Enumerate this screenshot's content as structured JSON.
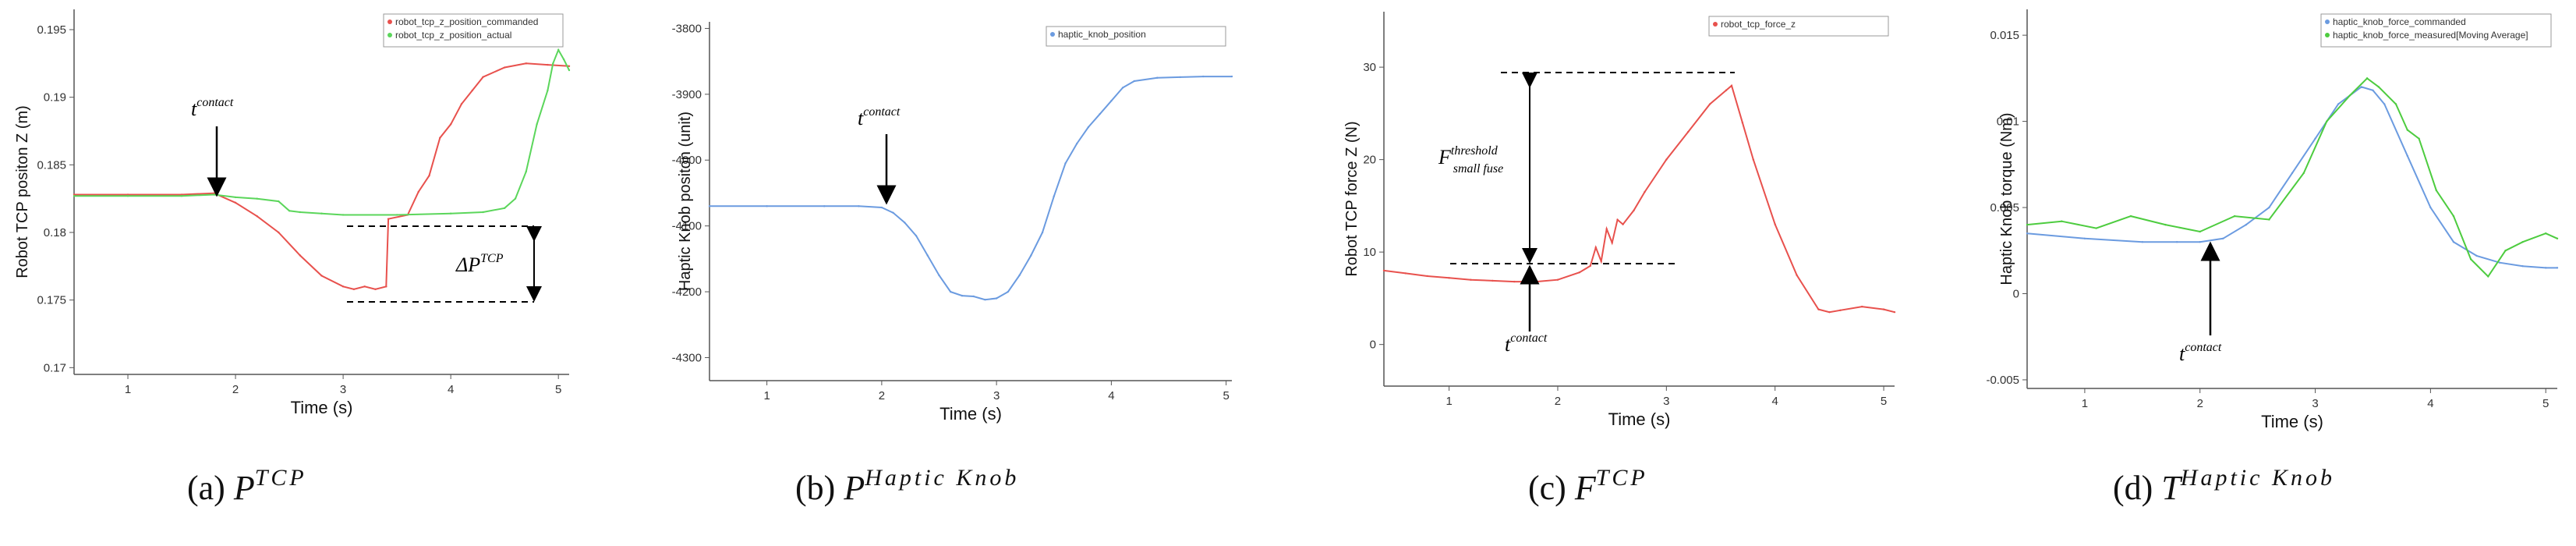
{
  "chart_data": [
    {
      "type": "line",
      "panel": "a",
      "caption_label": "(a)",
      "caption_symbol": "P",
      "caption_sup": "TCP",
      "xlabel": "Time (s)",
      "ylabel": "Robot TCP positon Z (m)",
      "xlim": [
        0.5,
        5.1
      ],
      "ylim": [
        0.1695,
        0.1965
      ],
      "xticks": [
        1,
        2,
        3,
        4,
        5
      ],
      "yticks": [
        0.17,
        0.175,
        0.18,
        0.185,
        0.19,
        0.195
      ],
      "grid": false,
      "legend_position": "top-right",
      "annotations": [
        {
          "text_base": "t",
          "text_sup": "contact"
        },
        {
          "text_base": "ΔP",
          "text_sup": "TCP"
        }
      ],
      "series": [
        {
          "name": "robot_tcp_z_position_commanded",
          "color": "#e8514d",
          "x": [
            0.5,
            1.0,
            1.5,
            1.8,
            2.0,
            2.2,
            2.4,
            2.6,
            2.8,
            3.0,
            3.1,
            3.2,
            3.3,
            3.4,
            3.42,
            3.6,
            3.7,
            3.8,
            3.9,
            4.0,
            4.1,
            4.2,
            4.3,
            4.5,
            4.7,
            4.9,
            5.1
          ],
          "y": [
            0.1828,
            0.1828,
            0.1828,
            0.1829,
            0.1822,
            0.1812,
            0.18,
            0.1783,
            0.1768,
            0.176,
            0.1758,
            0.176,
            0.1758,
            0.176,
            0.181,
            0.1813,
            0.183,
            0.1842,
            0.187,
            0.188,
            0.1895,
            0.1905,
            0.1915,
            0.1922,
            0.1925,
            0.1924,
            0.1923
          ]
        },
        {
          "name": "robot_tcp_z_position_actual",
          "color": "#5bd65b",
          "x": [
            0.5,
            1.0,
            1.5,
            1.8,
            2.0,
            2.2,
            2.4,
            2.5,
            2.6,
            2.8,
            3.0,
            3.5,
            4.0,
            4.3,
            4.5,
            4.6,
            4.7,
            4.8,
            4.9,
            4.95,
            5.0,
            5.05,
            5.1
          ],
          "y": [
            0.1827,
            0.1827,
            0.1827,
            0.1828,
            0.1826,
            0.1825,
            0.1823,
            0.1816,
            0.1815,
            0.1814,
            0.1813,
            0.1813,
            0.1814,
            0.1815,
            0.1818,
            0.1825,
            0.1845,
            0.188,
            0.1905,
            0.1925,
            0.1935,
            0.1928,
            0.192
          ]
        }
      ]
    },
    {
      "type": "line",
      "panel": "b",
      "caption_label": "(b)",
      "caption_symbol": "P",
      "caption_sup": "Haptic Knob",
      "xlabel": "Time (s)",
      "ylabel": "Haptic Knob positon (unit)",
      "xlim": [
        0.5,
        5.05
      ],
      "ylim": [
        -4335,
        -3790
      ],
      "xticks": [
        1,
        2,
        3,
        4,
        5
      ],
      "yticks": [
        -3800,
        -3900,
        -4000,
        -4100,
        -4200,
        -4300
      ],
      "grid": false,
      "legend_position": "top-right",
      "annotations": [
        {
          "text_base": "t",
          "text_sup": "contact"
        }
      ],
      "series": [
        {
          "name": "haptic_knob_position",
          "color": "#6b9be0",
          "x": [
            0.5,
            1.0,
            1.5,
            1.8,
            2.0,
            2.1,
            2.2,
            2.3,
            2.4,
            2.5,
            2.6,
            2.7,
            2.8,
            2.9,
            3.0,
            3.1,
            3.2,
            3.3,
            3.4,
            3.5,
            3.6,
            3.7,
            3.8,
            3.9,
            4.0,
            4.1,
            4.2,
            4.4,
            4.6,
            4.8,
            5.05
          ],
          "y": [
            -4070,
            -4070,
            -4070,
            -4070,
            -4072,
            -4080,
            -4095,
            -4115,
            -4145,
            -4175,
            -4200,
            -4206,
            -4207,
            -4212,
            -4210,
            -4200,
            -4175,
            -4145,
            -4110,
            -4055,
            -4005,
            -3975,
            -3950,
            -3930,
            -3910,
            -3890,
            -3880,
            -3875,
            -3874,
            -3873,
            -3873
          ]
        }
      ]
    },
    {
      "type": "line",
      "panel": "c",
      "caption_label": "(c)",
      "caption_symbol": "F",
      "caption_sup": "TCP",
      "xlabel": "Time (s)",
      "ylabel": "Robot TCP force Z (N)",
      "xlim": [
        0.4,
        5.1
      ],
      "ylim": [
        -4.5,
        36
      ],
      "xticks": [
        1,
        2,
        3,
        4,
        5
      ],
      "yticks": [
        0,
        10,
        20,
        30
      ],
      "grid": false,
      "legend_position": "top-right",
      "annotations": [
        {
          "text_base": "F",
          "text_sup": "threshold",
          "text_sub": "small fuse"
        },
        {
          "text_base": "t",
          "text_sup": "contact"
        }
      ],
      "series": [
        {
          "name": "robot_tcp_force_z",
          "color": "#e8514d",
          "x": [
            0.4,
            0.6,
            0.8,
            1.0,
            1.2,
            1.4,
            1.6,
            1.8,
            2.0,
            2.2,
            2.3,
            2.35,
            2.4,
            2.45,
            2.5,
            2.55,
            2.6,
            2.7,
            2.8,
            3.0,
            3.2,
            3.4,
            3.55,
            3.6,
            3.7,
            3.8,
            4.0,
            4.2,
            4.4,
            4.5,
            4.6,
            4.8,
            5.0,
            5.1
          ],
          "y": [
            8.0,
            7.7,
            7.4,
            7.2,
            7.0,
            6.9,
            6.8,
            6.8,
            7.0,
            7.8,
            8.5,
            10.5,
            9.0,
            12.5,
            11.0,
            13.5,
            13.0,
            14.5,
            16.5,
            20.0,
            23.0,
            26.0,
            27.5,
            28.0,
            24.0,
            20.0,
            13.0,
            7.5,
            3.8,
            3.5,
            3.7,
            4.1,
            3.8,
            3.5
          ]
        }
      ]
    },
    {
      "type": "line",
      "panel": "d",
      "caption_label": "(d)",
      "caption_symbol": "T",
      "caption_sup": "Haptic Knob",
      "xlabel": "Time (s)",
      "ylabel": "Haptic Knob torque (Nm)",
      "xlim": [
        0.5,
        5.1
      ],
      "ylim": [
        -0.0055,
        0.0165
      ],
      "xticks": [
        1,
        2,
        3,
        4,
        5
      ],
      "yticks": [
        -0.005,
        0,
        0.005,
        0.01,
        0.015
      ],
      "grid": false,
      "legend_position": "top-right",
      "annotations": [
        {
          "text_base": "t",
          "text_sup": "contact"
        }
      ],
      "series": [
        {
          "name": "haptic_knob_force_commanded",
          "color": "#6b9be0",
          "x": [
            0.5,
            1.0,
            1.5,
            1.8,
            2.0,
            2.2,
            2.4,
            2.6,
            2.8,
            3.0,
            3.2,
            3.4,
            3.5,
            3.6,
            3.8,
            4.0,
            4.2,
            4.4,
            4.6,
            4.8,
            5.0,
            5.1
          ],
          "y": [
            0.0035,
            0.0032,
            0.003,
            0.003,
            0.003,
            0.0032,
            0.004,
            0.005,
            0.007,
            0.009,
            0.011,
            0.012,
            0.0118,
            0.011,
            0.008,
            0.005,
            0.003,
            0.0022,
            0.0018,
            0.0016,
            0.0015,
            0.0015
          ]
        },
        {
          "name": "haptic_knob_force_measured[Moving Average]",
          "color": "#4dcc3f",
          "x": [
            0.5,
            0.8,
            1.1,
            1.4,
            1.7,
            2.0,
            2.3,
            2.6,
            2.9,
            3.1,
            3.3,
            3.45,
            3.55,
            3.7,
            3.8,
            3.9,
            4.05,
            4.2,
            4.35,
            4.5,
            4.65,
            4.8,
            5.0,
            5.1
          ],
          "y": [
            0.004,
            0.0042,
            0.0038,
            0.0045,
            0.004,
            0.0036,
            0.0045,
            0.0043,
            0.007,
            0.01,
            0.0115,
            0.0125,
            0.012,
            0.011,
            0.0095,
            0.009,
            0.006,
            0.0045,
            0.002,
            0.001,
            0.0025,
            0.003,
            0.0035,
            0.0032
          ]
        }
      ]
    }
  ]
}
